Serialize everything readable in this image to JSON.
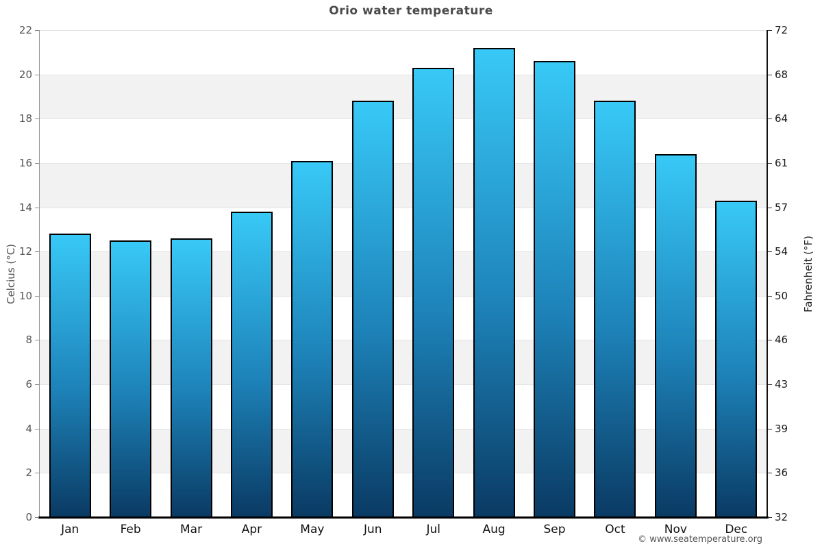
{
  "title": "Orio water temperature",
  "footer": "© www.seatemperature.org",
  "colors": {
    "bar_gradient_top": "#38c9f7",
    "bar_gradient_mid": "#1d82b8",
    "bar_gradient_bottom": "#0a3a63",
    "bar_stroke": "#000000",
    "band_gray": "#f2f2f2",
    "axis_baseline": "#000000",
    "left_tick_text": "#555555",
    "right_tick_text": "#1a1a1a",
    "title_text": "#4a4a4a"
  },
  "chart_data": {
    "type": "bar",
    "title": "Orio water temperature",
    "categories": [
      "Jan",
      "Feb",
      "Mar",
      "Apr",
      "May",
      "Jun",
      "Jul",
      "Aug",
      "Sep",
      "Oct",
      "Nov",
      "Dec"
    ],
    "values": [
      12.8,
      12.5,
      12.6,
      13.8,
      16.1,
      18.8,
      20.3,
      21.2,
      20.6,
      18.8,
      16.4,
      14.3
    ],
    "xlabel": "",
    "ylabel_left": "Celcius (°C)",
    "ylabel_right": "Fahrenheit (°F)",
    "yticks_celsius": [
      22,
      20,
      18,
      16,
      14,
      12,
      10,
      8,
      6,
      4,
      2,
      0
    ],
    "yticks_fahrenheit": [
      72,
      68,
      64,
      61,
      57,
      54,
      50,
      46,
      43,
      39,
      36,
      32
    ],
    "ylim": [
      0,
      22
    ],
    "grid": "alternating-horizontal-bands",
    "legend": "none"
  }
}
